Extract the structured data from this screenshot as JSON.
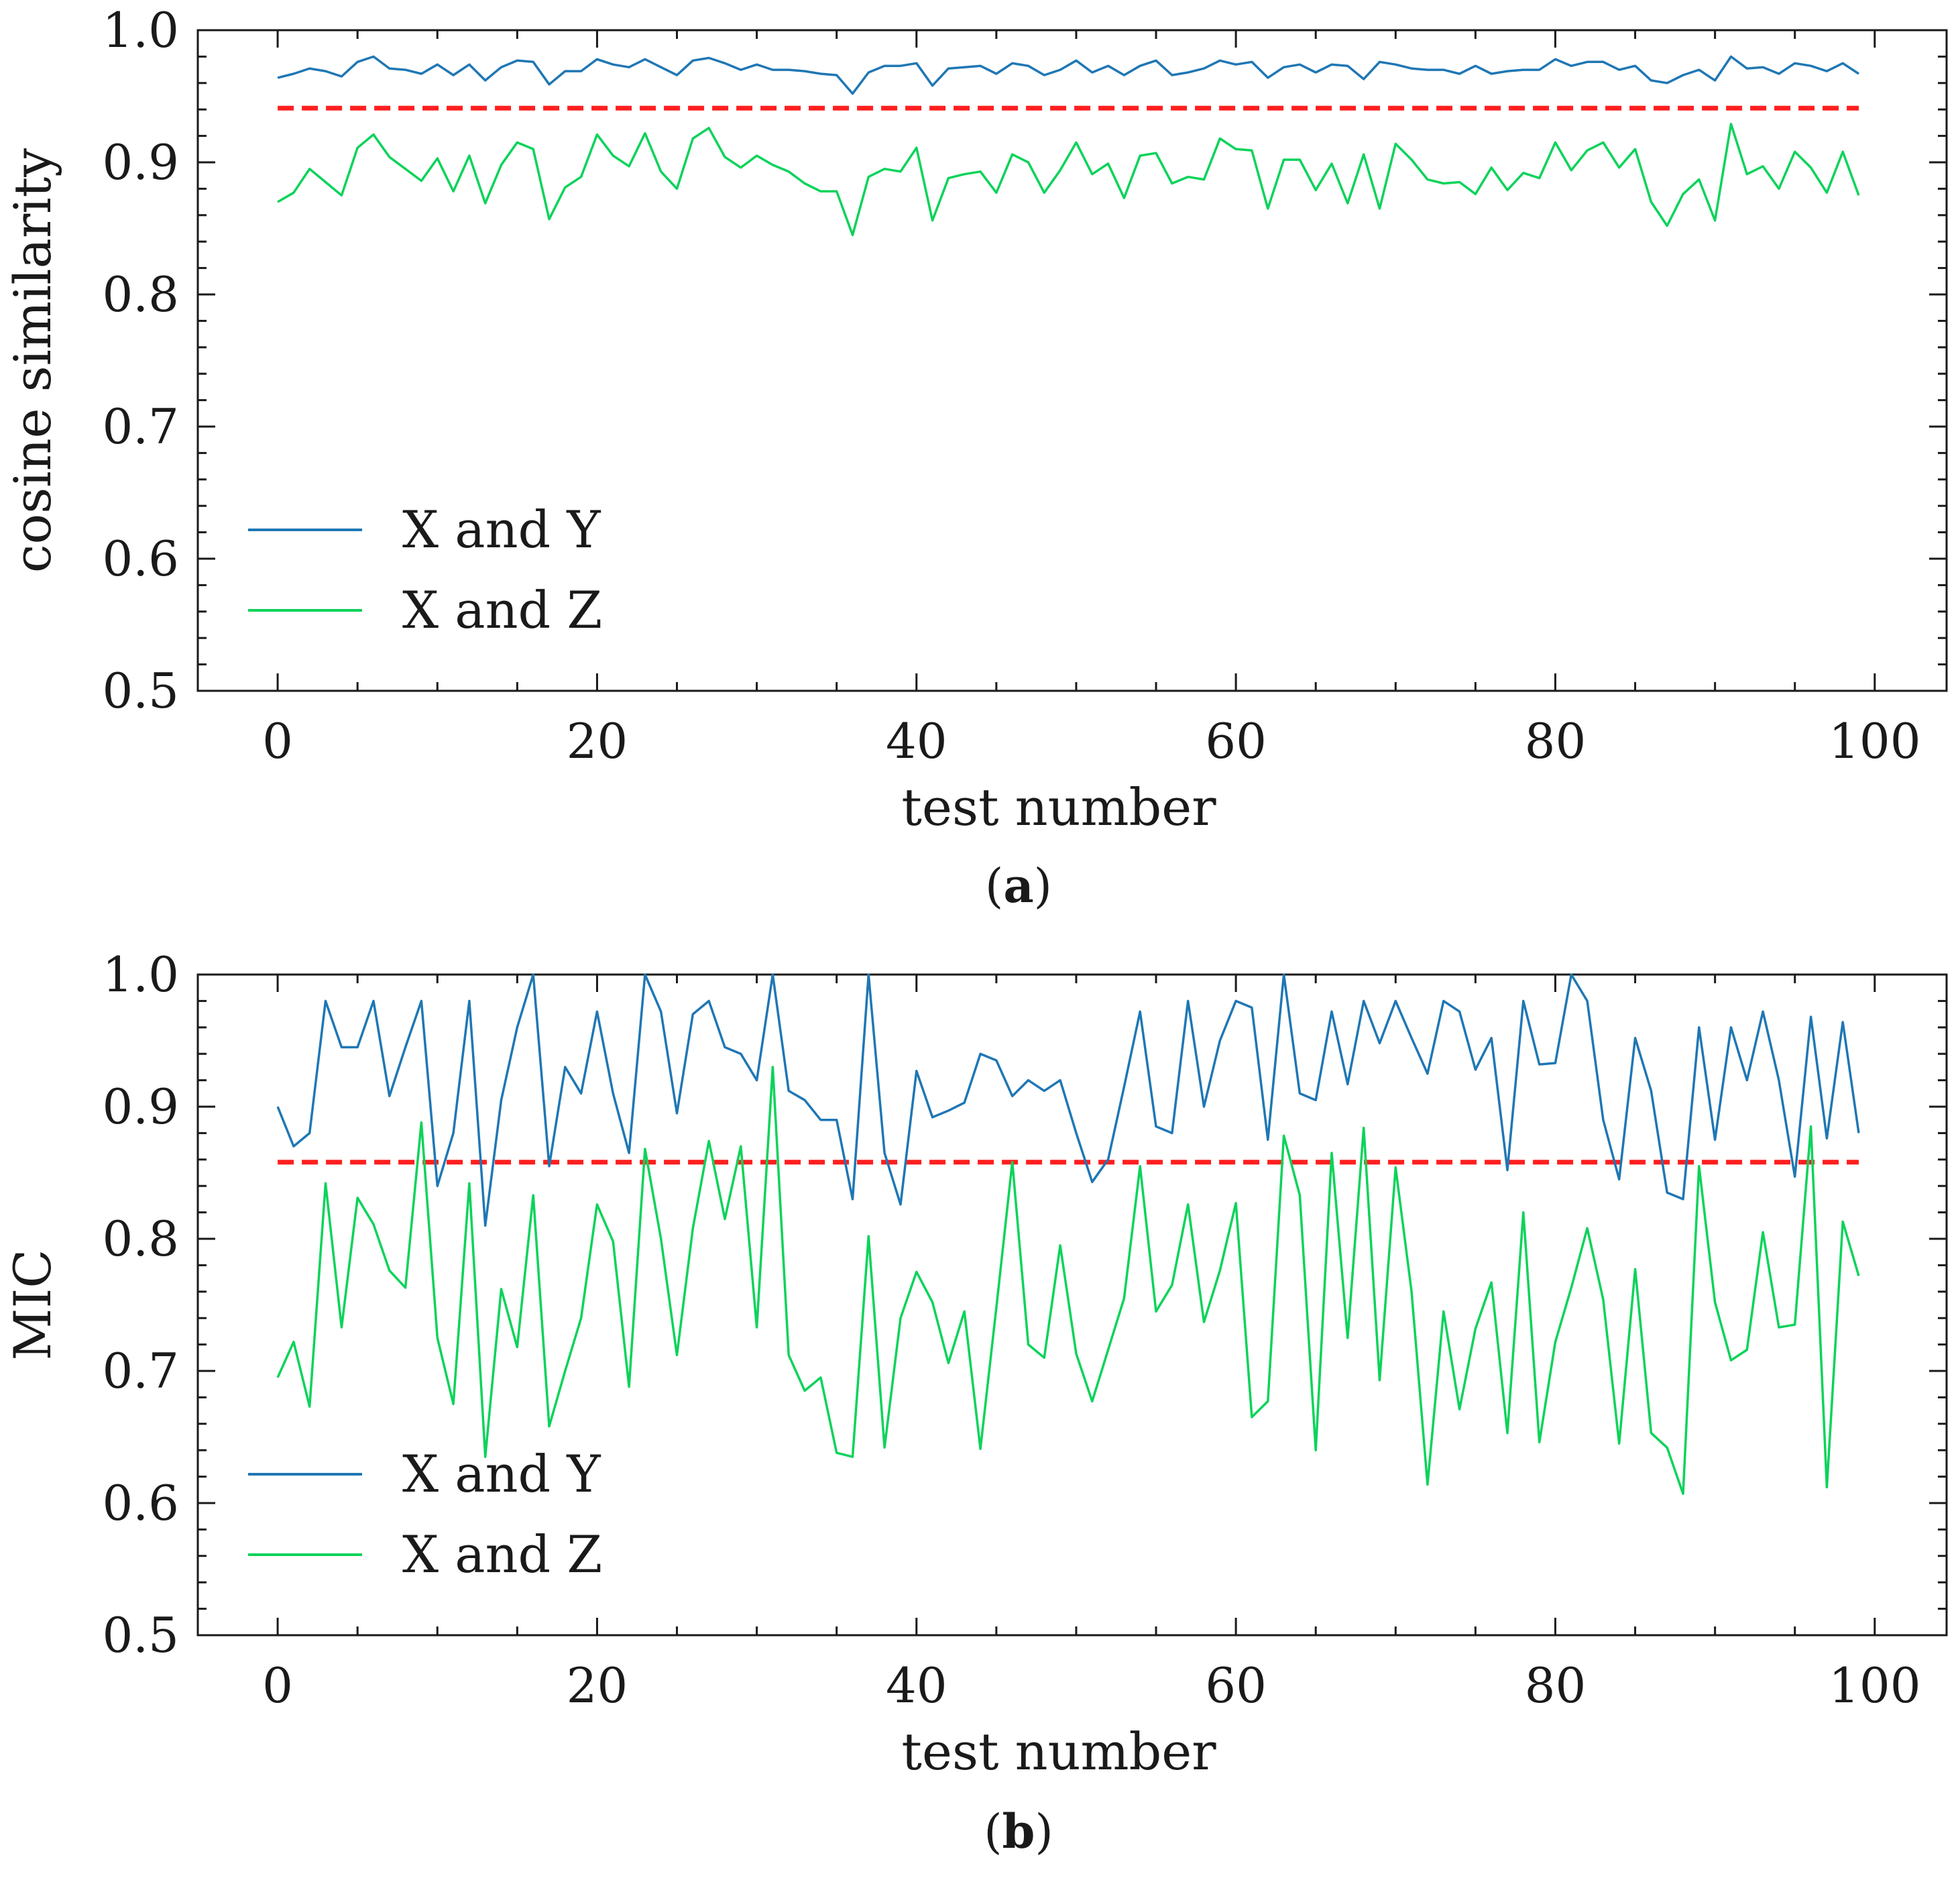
{
  "colors": {
    "series_xy": "#1f77b4",
    "series_xz": "#0bd35a",
    "threshold": "#ff1f1f",
    "axis": "#1a1a1a"
  },
  "chart_data": [
    {
      "id": "a",
      "type": "line",
      "caption": "(a)",
      "caption_letter": "a",
      "xlabel": "test number",
      "ylabel": "cosine similarity",
      "xlim": [
        -5,
        104.5
      ],
      "ylim": [
        0.5,
        1.0
      ],
      "xticks": [
        0,
        20,
        40,
        60,
        80,
        100
      ],
      "yticks": [
        0.5,
        0.6,
        0.7,
        0.8,
        0.9,
        1.0
      ],
      "ytick_labels": [
        "0.5",
        "0.6",
        "0.7",
        "0.8",
        "0.9",
        "1.0"
      ],
      "legend_position": "lower-left",
      "threshold": {
        "y": 0.941,
        "x_range": [
          0,
          99
        ],
        "style": "dashed"
      },
      "series": [
        {
          "name": "X and Y",
          "values": [
            0.964,
            0.967,
            0.971,
            0.969,
            0.965,
            0.976,
            0.98,
            0.971,
            0.97,
            0.967,
            0.974,
            0.966,
            0.974,
            0.962,
            0.972,
            0.977,
            0.976,
            0.959,
            0.969,
            0.969,
            0.978,
            0.974,
            0.972,
            0.978,
            0.972,
            0.966,
            0.977,
            0.979,
            0.975,
            0.97,
            0.974,
            0.97,
            0.97,
            0.969,
            0.967,
            0.966,
            0.952,
            0.968,
            0.973,
            0.973,
            0.975,
            0.958,
            0.971,
            0.972,
            0.973,
            0.967,
            0.975,
            0.973,
            0.966,
            0.97,
            0.977,
            0.968,
            0.973,
            0.966,
            0.973,
            0.977,
            0.966,
            0.968,
            0.971,
            0.977,
            0.974,
            0.976,
            0.964,
            0.972,
            0.974,
            0.968,
            0.974,
            0.973,
            0.963,
            0.976,
            0.974,
            0.971,
            0.97,
            0.97,
            0.967,
            0.973,
            0.967,
            0.969,
            0.97,
            0.97,
            0.978,
            0.973,
            0.976,
            0.976,
            0.97,
            0.973,
            0.962,
            0.96,
            0.966,
            0.97,
            0.962,
            0.98,
            0.971,
            0.972,
            0.967,
            0.975,
            0.973,
            0.969,
            0.975,
            0.967
          ]
        },
        {
          "name": "X and Z",
          "values": [
            0.87,
            0.877,
            0.895,
            0.885,
            0.875,
            0.911,
            0.921,
            0.904,
            0.895,
            0.886,
            0.903,
            0.878,
            0.905,
            0.869,
            0.898,
            0.915,
            0.91,
            0.857,
            0.881,
            0.889,
            0.921,
            0.905,
            0.897,
            0.922,
            0.893,
            0.88,
            0.918,
            0.926,
            0.904,
            0.896,
            0.905,
            0.898,
            0.893,
            0.884,
            0.878,
            0.878,
            0.845,
            0.889,
            0.895,
            0.893,
            0.911,
            0.856,
            0.888,
            0.891,
            0.893,
            0.877,
            0.906,
            0.9,
            0.877,
            0.894,
            0.915,
            0.891,
            0.899,
            0.873,
            0.905,
            0.907,
            0.884,
            0.889,
            0.887,
            0.918,
            0.91,
            0.909,
            0.865,
            0.902,
            0.902,
            0.879,
            0.899,
            0.869,
            0.906,
            0.865,
            0.914,
            0.902,
            0.887,
            0.884,
            0.885,
            0.876,
            0.896,
            0.879,
            0.892,
            0.888,
            0.915,
            0.894,
            0.909,
            0.915,
            0.896,
            0.91,
            0.87,
            0.852,
            0.876,
            0.887,
            0.856,
            0.929,
            0.891,
            0.897,
            0.88,
            0.908,
            0.896,
            0.877,
            0.908,
            0.875
          ]
        }
      ]
    },
    {
      "id": "b",
      "type": "line",
      "caption": "(b)",
      "caption_letter": "b",
      "xlabel": "test number",
      "ylabel": "MIC",
      "xlim": [
        -5,
        104.5
      ],
      "ylim": [
        0.5,
        1.0
      ],
      "xticks": [
        0,
        20,
        40,
        60,
        80,
        100
      ],
      "yticks": [
        0.5,
        0.6,
        0.7,
        0.8,
        0.9,
        1.0
      ],
      "ytick_labels": [
        "0.5",
        "0.6",
        "0.7",
        "0.8",
        "0.9",
        "1.0"
      ],
      "legend_position": "lower-left",
      "threshold": {
        "y": 0.858,
        "x_range": [
          0,
          99
        ],
        "style": "dashed"
      },
      "series": [
        {
          "name": "X and Y",
          "values": [
            0.9,
            0.87,
            0.88,
            0.98,
            0.945,
            0.945,
            0.98,
            0.908,
            0.945,
            0.98,
            0.84,
            0.88,
            0.98,
            0.81,
            0.905,
            0.96,
            1.0,
            0.855,
            0.93,
            0.91,
            0.972,
            0.91,
            0.865,
            1.0,
            0.972,
            0.895,
            0.97,
            0.98,
            0.945,
            0.94,
            0.92,
            1.0,
            0.912,
            0.905,
            0.89,
            0.89,
            0.83,
            1.0,
            0.865,
            0.826,
            0.927,
            0.892,
            0.897,
            0.903,
            0.94,
            0.935,
            0.908,
            0.92,
            0.912,
            0.92,
            0.88,
            0.843,
            0.86,
            0.915,
            0.972,
            0.885,
            0.88,
            0.98,
            0.9,
            0.95,
            0.98,
            0.975,
            0.875,
            1.0,
            0.91,
            0.905,
            0.972,
            0.917,
            0.98,
            0.948,
            0.98,
            0.952,
            0.925,
            0.98,
            0.972,
            0.928,
            0.952,
            0.852,
            0.98,
            0.932,
            0.933,
            1.0,
            0.98,
            0.89,
            0.845,
            0.952,
            0.912,
            0.835,
            0.83,
            0.96,
            0.875,
            0.96,
            0.92,
            0.972,
            0.92,
            0.847,
            0.968,
            0.876,
            0.964,
            0.88
          ]
        },
        {
          "name": "X and Z",
          "values": [
            0.695,
            0.722,
            0.673,
            0.842,
            0.733,
            0.831,
            0.811,
            0.776,
            0.763,
            0.888,
            0.725,
            0.675,
            0.842,
            0.635,
            0.762,
            0.718,
            0.833,
            0.658,
            0.7,
            0.74,
            0.826,
            0.798,
            0.688,
            0.868,
            0.8,
            0.712,
            0.808,
            0.874,
            0.815,
            0.87,
            0.733,
            0.93,
            0.712,
            0.685,
            0.695,
            0.638,
            0.635,
            0.802,
            0.642,
            0.74,
            0.775,
            0.752,
            0.706,
            0.745,
            0.641,
            0.748,
            0.858,
            0.72,
            0.71,
            0.795,
            0.713,
            0.677,
            0.716,
            0.755,
            0.855,
            0.745,
            0.765,
            0.826,
            0.737,
            0.776,
            0.827,
            0.665,
            0.677,
            0.878,
            0.833,
            0.64,
            0.865,
            0.725,
            0.884,
            0.693,
            0.854,
            0.76,
            0.614,
            0.745,
            0.671,
            0.732,
            0.767,
            0.653,
            0.82,
            0.646,
            0.722,
            0.763,
            0.808,
            0.754,
            0.645,
            0.777,
            0.653,
            0.642,
            0.607,
            0.855,
            0.752,
            0.708,
            0.716,
            0.805,
            0.733,
            0.735,
            0.885,
            0.612,
            0.813,
            0.772
          ]
        }
      ]
    }
  ]
}
